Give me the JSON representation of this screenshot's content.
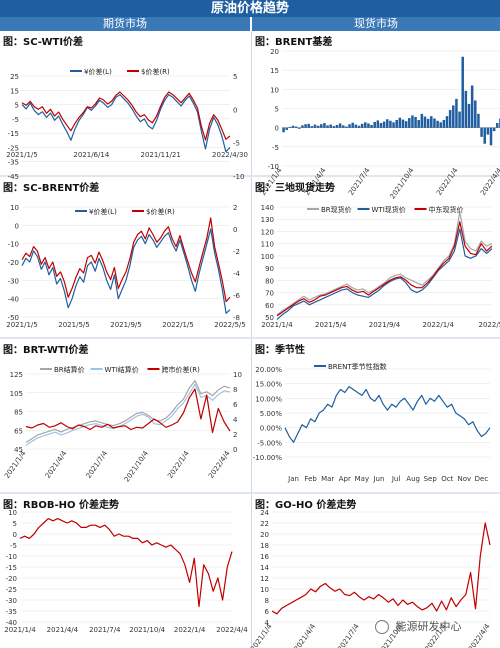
{
  "header": {
    "title": "原油价格趋势",
    "left_column": "期货市场",
    "right_column": "现货市场"
  },
  "watermark": "能源研发中心",
  "colors": {
    "blue": "#1f5fa0",
    "red": "#c00000",
    "gray": "#a6a6a6",
    "lightblue": "#9dc3e6"
  },
  "charts": [
    {
      "id": "sc-wti",
      "panel_title": "图：SC-WTI价差",
      "chart_data": {
        "type": "line",
        "x_ticks": [
          "2021/1/5",
          "2021/6/14",
          "2021/11/21",
          "2022/4/30"
        ],
        "y_left": {
          "ticks": [
            "25",
            "15",
            "5",
            "-5",
            "-15",
            "-25",
            "-35",
            "-45"
          ],
          "range": [
            -45,
            25
          ]
        },
        "y_right": {
          "ticks": [
            "5",
            "0",
            "-5",
            "-10"
          ],
          "range": [
            -10,
            5
          ]
        },
        "series": [
          {
            "name": "¥价差(L)",
            "color": "#1f5fa0",
            "axis": "left",
            "values": [
              5,
              2,
              6,
              1,
              -2,
              0,
              -4,
              -1,
              -6,
              -3,
              -9,
              -14,
              -20,
              -12,
              -6,
              -2,
              3,
              1,
              4,
              8,
              6,
              3,
              5,
              10,
              12,
              9,
              6,
              2,
              -3,
              -7,
              -5,
              -10,
              -12,
              -6,
              2,
              8,
              12,
              10,
              7,
              4,
              8,
              11,
              6,
              0,
              -14,
              -26,
              -12,
              -4,
              -9,
              -17,
              -28,
              -25
            ]
          },
          {
            "name": "$价差(R)",
            "color": "#c00000",
            "axis": "right",
            "values": [
              1.0,
              0.6,
              1.2,
              0.4,
              0.0,
              0.4,
              -0.6,
              0.0,
              -1.0,
              -0.4,
              -1.5,
              -2.4,
              -3.2,
              -2.1,
              -1.2,
              -0.5,
              0.4,
              0.2,
              0.8,
              1.7,
              1.4,
              0.8,
              1.2,
              2.1,
              2.6,
              2.0,
              1.4,
              0.6,
              -0.4,
              -1.1,
              -0.8,
              -1.6,
              -2.0,
              -1.0,
              0.5,
              1.8,
              2.6,
              2.2,
              1.6,
              1.0,
              1.7,
              2.4,
              1.4,
              0.2,
              -2.6,
              -4.6,
              -2.1,
              -0.8,
              -1.6,
              -3.0,
              -4.5,
              -4.0
            ]
          }
        ]
      }
    },
    {
      "id": "brent-basis",
      "panel_title": "图：BRENT基差",
      "chart_data": {
        "type": "bar",
        "x_ticks": [
          "2021/1/4",
          "2021/4/4",
          "2021/7/4",
          "2021/10/4",
          "2022/1/4",
          "2022/4/4"
        ],
        "y": {
          "ticks": [
            "20",
            "15",
            "10",
            "5",
            "0",
            "-5",
            "-10"
          ],
          "range": [
            -10,
            20
          ]
        },
        "series": [
          {
            "name": "BRENT基差",
            "color": "#1f5fa0",
            "values": [
              -1.2,
              -0.6,
              0.2,
              0.5,
              0.3,
              -0.3,
              0.6,
              0.9,
              1.0,
              0.4,
              0.8,
              0.5,
              0.9,
              1.2,
              0.6,
              0.8,
              0.4,
              0.7,
              1.1,
              0.6,
              0.3,
              0.9,
              1.3,
              0.8,
              0.5,
              1.0,
              1.4,
              1.1,
              0.7,
              1.5,
              1.9,
              1.2,
              1.6,
              2.2,
              1.8,
              1.4,
              2.0,
              2.6,
              2.1,
              1.7,
              2.5,
              3.2,
              2.8,
              2.0,
              3.6,
              2.9,
              2.3,
              3.0,
              2.4,
              1.8,
              1.4,
              2.0,
              3.0,
              4.6,
              5.8,
              7.5,
              4.2,
              18.5,
              9.6,
              6.2,
              11.0,
              7.1,
              3.6,
              -2.4,
              -4.2,
              -1.8,
              -4.6,
              -0.9,
              1.2,
              2.4
            ]
          }
        ]
      }
    },
    {
      "id": "sc-brent",
      "panel_title": "图：SC-BRENT价差",
      "chart_data": {
        "type": "line",
        "x_ticks": [
          "2021/1/5",
          "2021/5/5",
          "2021/9/5",
          "2022/1/5",
          "2022/5/5"
        ],
        "y_left": {
          "ticks": [
            "10",
            "0",
            "-10",
            "-20",
            "-30",
            "-40",
            "-50"
          ],
          "range": [
            -50,
            10
          ]
        },
        "y_right": {
          "ticks": [
            "2",
            "0",
            "-2",
            "-4",
            "-6",
            "-8"
          ],
          "range": [
            -8,
            2
          ]
        },
        "series": [
          {
            "name": "¥价差(L)",
            "color": "#1f5fa0",
            "axis": "left",
            "values": [
              -22,
              -18,
              -20,
              -14,
              -17,
              -24,
              -20,
              -27,
              -23,
              -32,
              -29,
              -36,
              -45,
              -40,
              -33,
              -28,
              -31,
              -22,
              -20,
              -25,
              -18,
              -23,
              -30,
              -35,
              -27,
              -40,
              -35,
              -30,
              -22,
              -12,
              -8,
              -6,
              -10,
              -5,
              -8,
              -12,
              -9,
              -6,
              -4,
              -10,
              -14,
              -8,
              -15,
              -22,
              -30,
              -36,
              -26,
              -18,
              -10,
              -2,
              -15,
              -24,
              -35,
              -48,
              -46
            ]
          },
          {
            "name": "$价差(R)",
            "color": "#c00000",
            "axis": "right",
            "values": [
              -2.8,
              -2.2,
              -2.5,
              -1.6,
              -2.0,
              -3.2,
              -2.6,
              -3.6,
              -3.0,
              -4.3,
              -3.9,
              -4.8,
              -6.2,
              -5.4,
              -4.4,
              -3.6,
              -4.0,
              -2.6,
              -2.4,
              -3.1,
              -2.1,
              -2.9,
              -3.9,
              -4.6,
              -3.5,
              -5.4,
              -4.6,
              -3.9,
              -2.7,
              -1.2,
              -0.5,
              -0.2,
              -0.9,
              0.1,
              -0.5,
              -1.2,
              -0.8,
              -0.2,
              0.2,
              -0.9,
              -1.6,
              -0.6,
              -1.8,
              -2.9,
              -4.0,
              -4.8,
              -3.4,
              -2.1,
              -0.8,
              1.0,
              -1.6,
              -3.1,
              -4.7,
              -6.6,
              -6.2
            ]
          }
        ]
      }
    },
    {
      "id": "three-spot",
      "panel_title": "图：三地现货走势",
      "chart_data": {
        "type": "line",
        "x_ticks": [
          "2021/1/4",
          "2021/5/4",
          "2021/9/4",
          "2022/1/4",
          "2022/5/"
        ],
        "y": {
          "ticks": [
            "140",
            "130",
            "120",
            "110",
            "100",
            "90",
            "80",
            "70",
            "60",
            "50"
          ],
          "range": [
            50,
            140
          ]
        },
        "series": [
          {
            "name": "BR现货价",
            "color": "#a6a6a6",
            "values": [
              52,
              55,
              58,
              61,
              64,
              67,
              64,
              66,
              68,
              69,
              71,
              73,
              75,
              77,
              74,
              72,
              73,
              70,
              72,
              75,
              78,
              82,
              84,
              85,
              82,
              80,
              78,
              76,
              80,
              84,
              90,
              96,
              100,
              110,
              136,
              112,
              106,
              104,
              112,
              108,
              110
            ]
          },
          {
            "name": "WTI现货价",
            "color": "#1f5fa0",
            "values": [
              48,
              52,
              55,
              59,
              61,
              63,
              60,
              62,
              64,
              66,
              68,
              70,
              72,
              73,
              70,
              68,
              67,
              66,
              69,
              72,
              76,
              79,
              81,
              82,
              78,
              72,
              70,
              72,
              76,
              82,
              88,
              92,
              96,
              104,
              122,
              100,
              98,
              100,
              106,
              102,
              106
            ]
          },
          {
            "name": "中东现货价",
            "color": "#c00000",
            "values": [
              51,
              54,
              57,
              60,
              63,
              65,
              62,
              64,
              67,
              68,
              70,
              72,
              74,
              75,
              72,
              70,
              71,
              68,
              71,
              74,
              77,
              80,
              82,
              83,
              80,
              76,
              74,
              74,
              78,
              83,
              89,
              94,
              98,
              108,
              128,
              108,
              102,
              101,
              110,
              104,
              108
            ]
          }
        ]
      }
    },
    {
      "id": "brt-wti",
      "panel_title": "图：BRT-WTI价差",
      "chart_data": {
        "type": "line",
        "x_ticks": [
          "2021/1/4",
          "2021/4/4",
          "2021/7/4",
          "2021/10/4",
          "2022/1/4",
          "2022/4/4"
        ],
        "y_left": {
          "ticks": [
            "125",
            "105",
            "85",
            "65",
            "45"
          ],
          "range": [
            45,
            125
          ]
        },
        "y_right": {
          "ticks": [
            "10",
            "8",
            "6",
            "4",
            "2",
            "0"
          ],
          "range": [
            0,
            10
          ]
        },
        "series": [
          {
            "name": "BR结算价",
            "color": "#a6a6a6",
            "axis": "left",
            "values": [
              52,
              56,
              60,
              62,
              64,
              66,
              63,
              66,
              68,
              70,
              72,
              74,
              75,
              73,
              71,
              70,
              72,
              75,
              79,
              83,
              84,
              81,
              76,
              75,
              78,
              84,
              92,
              98,
              110,
              118,
              104,
              106,
              102,
              108,
              112,
              110
            ]
          },
          {
            "name": "WTI结算价",
            "color": "#9dc3e6",
            "axis": "left",
            "values": [
              49,
              53,
              57,
              59,
              61,
              63,
              60,
              62,
              65,
              67,
              69,
              71,
              72,
              70,
              68,
              67,
              69,
              72,
              76,
              80,
              82,
              79,
              72,
              71,
              75,
              80,
              88,
              94,
              104,
              114,
              100,
              102,
              97,
              103,
              107,
              106
            ]
          },
          {
            "name": "跨市价差(R)",
            "color": "#c00000",
            "axis": "right",
            "values": [
              3.0,
              2.8,
              3.2,
              3.4,
              2.9,
              3.1,
              3.5,
              3.0,
              2.7,
              3.2,
              3.0,
              2.6,
              3.1,
              2.9,
              3.3,
              2.8,
              3.0,
              3.1,
              2.6,
              2.9,
              2.8,
              3.4,
              4.0,
              3.5,
              2.9,
              3.2,
              3.6,
              4.8,
              6.8,
              8.0,
              4.0,
              7.2,
              2.2,
              5.4,
              3.6,
              2.4
            ]
          }
        ]
      }
    },
    {
      "id": "seasonal",
      "panel_title": "图：季节性",
      "chart_data": {
        "type": "line",
        "x_ticks": [
          "Jan",
          "Feb",
          "Mar",
          "Apr",
          "May",
          "Jun",
          "Jul",
          "Aug",
          "Sep",
          "Oct",
          "Nov",
          "Dec"
        ],
        "y": {
          "ticks": [
            "20.00%",
            "15.00%",
            "10.00%",
            "5.00%",
            "0.00%",
            "-5.00%",
            "-10.00%"
          ],
          "range": [
            -10,
            20
          ]
        },
        "series": [
          {
            "name": "BRENT季节性指数",
            "color": "#1f5fa0",
            "values": [
              0,
              -3,
              -5,
              -2,
              1,
              0,
              3,
              2,
              5,
              6,
              8,
              7,
              11,
              13,
              12,
              14,
              13,
              12,
              11,
              13,
              10,
              9,
              11,
              8,
              6,
              8,
              7,
              9,
              10,
              8,
              6,
              9,
              11,
              8,
              10,
              9,
              11,
              9,
              7,
              8,
              5,
              4,
              3,
              1,
              2,
              -1,
              -3,
              -2,
              0
            ]
          }
        ]
      }
    },
    {
      "id": "rbob-ho",
      "panel_title": "图：RBOB-HO 价差走势",
      "chart_data": {
        "type": "line",
        "x_ticks": [
          "2021/1/4",
          "2021/4/4",
          "2021/7/4",
          "2021/10/4",
          "2022/1/4",
          "2022/4/4"
        ],
        "y": {
          "ticks": [
            "10",
            "5",
            "0",
            "-5",
            "-10",
            "-15",
            "-20",
            "-25",
            "-30",
            "-35",
            "-40"
          ],
          "range": [
            -40,
            10
          ]
        },
        "series": [
          {
            "name": "RBOB-HO",
            "color": "#c00000",
            "values": [
              -2,
              -1,
              -2,
              0,
              3,
              5,
              7,
              6,
              7,
              6,
              5,
              6,
              5,
              3,
              3,
              4,
              4,
              3,
              4,
              2,
              -1,
              0,
              -1,
              -1,
              -2,
              -2,
              -4,
              -3,
              -5,
              -4,
              -5,
              -6,
              -5,
              -7,
              -9,
              -14,
              -22,
              -11,
              -33,
              -14,
              -18,
              -26,
              -20,
              -30,
              -15,
              -8
            ]
          }
        ]
      }
    },
    {
      "id": "go-ho",
      "panel_title": "图：GO-HO 价差走势",
      "chart_data": {
        "type": "line",
        "x_ticks": [
          "2021/1/4",
          "2021/4/4",
          "2021/7/4",
          "2021/10/4",
          "2022/1/4",
          "2022/4/4"
        ],
        "y": {
          "ticks": [
            "24",
            "22",
            "20",
            "18",
            "16",
            "14",
            "12",
            "10",
            "8",
            "6",
            "4"
          ],
          "range": [
            4,
            24
          ]
        },
        "series": [
          {
            "name": "GO-HO",
            "color": "#c00000",
            "values": [
              6,
              5.5,
              6.5,
              7,
              7.5,
              8,
              8.5,
              9,
              10,
              9.5,
              10.5,
              11,
              10.2,
              9.6,
              10,
              9,
              8.8,
              9.4,
              8.6,
              8,
              8.6,
              8.2,
              9,
              8.4,
              7.6,
              8.2,
              7,
              8,
              7.2,
              7.6,
              6.8,
              6.2,
              6.6,
              7.4,
              6,
              7.8,
              6.2,
              8.4,
              6.8,
              8,
              9,
              13,
              6.4,
              16,
              22,
              18
            ]
          }
        ]
      }
    }
  ]
}
